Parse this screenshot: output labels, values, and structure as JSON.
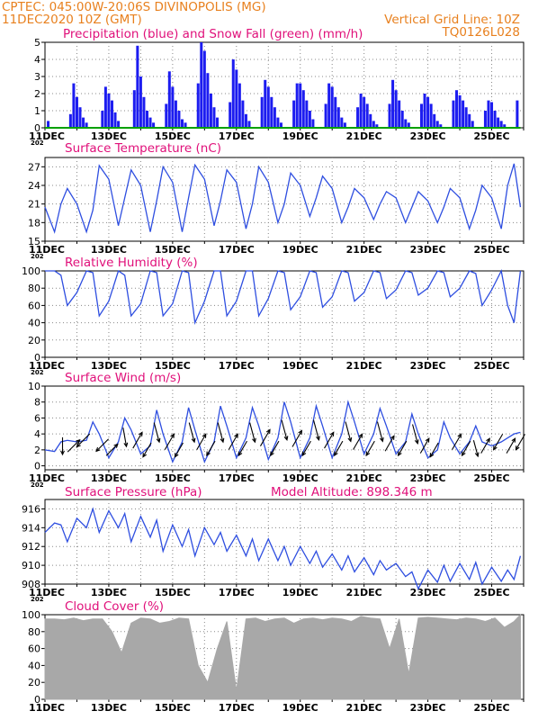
{
  "header": {
    "line1": "CPTEC:   045:00W-20:06S   DIVINOPOLIS (MG)",
    "line2": "11DEC2020 10Z (GMT)",
    "grid_note": "Vertical Grid Line: 10Z",
    "code": "TQ0126L028"
  },
  "colors": {
    "header": "#e8801e",
    "title": "#e0107a",
    "precip": "#1c1cf0",
    "snow": "#00a000",
    "line": "#2e4ee0",
    "cloud": "#a8a8a8",
    "arrow": "#000000"
  },
  "x_axis": {
    "labels": [
      "11DEC",
      "13DEC",
      "15DEC",
      "17DEC",
      "19DEC",
      "21DEC",
      "23DEC",
      "25DEC"
    ],
    "year_stub": "202"
  },
  "chart_data": [
    {
      "id": "precip",
      "type": "bar",
      "title": "Precipitation (blue) and Snow Fall (green) (mm/h)",
      "ylim": [
        0,
        5
      ],
      "yticks": [
        "0",
        "1",
        "2",
        "3",
        "4",
        "5"
      ],
      "series": [
        {
          "name": "Precipitation",
          "color": "#1c1cf0",
          "x": [
            0.1,
            0.8,
            0.9,
            1.0,
            1.1,
            1.2,
            1.3,
            1.8,
            1.9,
            2.0,
            2.1,
            2.2,
            2.3,
            2.8,
            2.9,
            3.0,
            3.1,
            3.2,
            3.3,
            3.4,
            3.8,
            3.9,
            4.0,
            4.1,
            4.2,
            4.3,
            4.4,
            4.8,
            4.9,
            5.0,
            5.1,
            5.2,
            5.3,
            5.4,
            5.8,
            5.9,
            6.0,
            6.1,
            6.2,
            6.3,
            6.4,
            6.8,
            6.9,
            7.0,
            7.1,
            7.2,
            7.3,
            7.4,
            7.8,
            7.9,
            8.0,
            8.1,
            8.2,
            8.3,
            8.4,
            8.8,
            8.9,
            9.0,
            9.1,
            9.2,
            9.3,
            9.4,
            9.8,
            9.9,
            10.0,
            10.1,
            10.2,
            10.3,
            10.4,
            10.8,
            10.9,
            11.0,
            11.1,
            11.2,
            11.3,
            11.4,
            11.8,
            11.9,
            12.0,
            12.1,
            12.2,
            12.3,
            12.4,
            12.8,
            12.9,
            13.0,
            13.1,
            13.2,
            13.3,
            13.4,
            13.8,
            13.9,
            14.0,
            14.1,
            14.2,
            14.3,
            14.4,
            14.8
          ],
          "values": [
            0.4,
            0.8,
            2.6,
            1.8,
            1.2,
            0.6,
            0.3,
            1.0,
            2.4,
            2.0,
            1.6,
            0.9,
            0.4,
            2.2,
            4.8,
            3.0,
            1.8,
            1.0,
            0.6,
            0.3,
            1.4,
            3.3,
            2.4,
            1.6,
            1.0,
            0.5,
            0.3,
            2.6,
            5.0,
            4.5,
            3.2,
            2.0,
            1.2,
            0.6,
            1.5,
            4.0,
            3.4,
            2.6,
            1.6,
            0.8,
            0.4,
            1.8,
            2.8,
            2.4,
            1.8,
            1.2,
            0.6,
            0.3,
            1.6,
            2.6,
            2.6,
            2.2,
            1.6,
            1.0,
            0.5,
            1.4,
            2.6,
            2.4,
            1.8,
            1.2,
            0.6,
            0.3,
            1.2,
            2.0,
            1.8,
            1.4,
            0.8,
            0.4,
            0.2,
            1.4,
            2.8,
            2.2,
            1.6,
            1.0,
            0.5,
            0.3,
            1.4,
            2.0,
            1.8,
            1.4,
            0.8,
            0.4,
            0.2,
            1.6,
            2.2,
            1.9,
            1.6,
            1.2,
            0.8,
            0.4,
            1.0,
            1.6,
            1.5,
            1.0,
            0.6,
            0.4,
            0.2,
            1.6
          ]
        },
        {
          "name": "Snow Fall",
          "color": "#00a000",
          "x": [
            0,
            14.9
          ],
          "values": [
            0,
            0
          ]
        }
      ]
    },
    {
      "id": "temperature",
      "type": "line",
      "title": "Surface Temperature (nC)",
      "ylim": [
        15,
        28.5
      ],
      "yticks": [
        "15",
        "18",
        "21",
        "24",
        "27"
      ],
      "x": [
        0,
        0.3,
        0.5,
        0.7,
        1.0,
        1.3,
        1.5,
        1.7,
        2.0,
        2.3,
        2.5,
        2.7,
        3.0,
        3.3,
        3.5,
        3.7,
        4.0,
        4.3,
        4.5,
        4.7,
        5.0,
        5.3,
        5.5,
        5.7,
        6.0,
        6.3,
        6.5,
        6.7,
        7.0,
        7.3,
        7.5,
        7.7,
        8.0,
        8.3,
        8.5,
        8.7,
        9.0,
        9.3,
        9.5,
        9.7,
        10.0,
        10.3,
        10.5,
        10.7,
        11.0,
        11.3,
        11.5,
        11.7,
        12.0,
        12.3,
        12.5,
        12.7,
        13.0,
        13.3,
        13.5,
        13.7,
        14.0,
        14.3,
        14.5,
        14.7,
        14.9
      ],
      "series": [
        {
          "name": "",
          "values": [
            20.5,
            16.5,
            21.0,
            23.5,
            21.0,
            16.5,
            20.0,
            27.2,
            25.0,
            17.5,
            22.0,
            26.5,
            24.0,
            16.5,
            21.5,
            27.0,
            24.5,
            16.5,
            22.0,
            27.3,
            25.0,
            17.5,
            21.5,
            26.5,
            24.5,
            17.0,
            21.0,
            27.0,
            24.5,
            18.0,
            21.0,
            26.0,
            24.0,
            19.0,
            22.0,
            25.5,
            23.5,
            18.0,
            20.5,
            23.5,
            22.0,
            18.5,
            21.0,
            23.0,
            22.0,
            18.0,
            20.5,
            23.0,
            21.5,
            18.0,
            20.5,
            23.5,
            22.0,
            17.0,
            20.0,
            24.0,
            22.0,
            17.0,
            24.0,
            27.5,
            20.5
          ]
        }
      ]
    },
    {
      "id": "humidity",
      "type": "line",
      "title": "Relative Humidity (%)",
      "ylim": [
        0,
        100
      ],
      "yticks": [
        "0",
        "20",
        "40",
        "60",
        "80",
        "100"
      ],
      "x": [
        0,
        0.3,
        0.5,
        0.7,
        1.0,
        1.3,
        1.5,
        1.7,
        2.0,
        2.3,
        2.5,
        2.7,
        3.0,
        3.3,
        3.5,
        3.7,
        4.0,
        4.3,
        4.5,
        4.7,
        5.0,
        5.3,
        5.5,
        5.7,
        6.0,
        6.3,
        6.5,
        6.7,
        7.0,
        7.3,
        7.5,
        7.7,
        8.0,
        8.3,
        8.5,
        8.7,
        9.0,
        9.3,
        9.5,
        9.7,
        10.0,
        10.3,
        10.5,
        10.7,
        11.0,
        11.3,
        11.5,
        11.7,
        12.0,
        12.3,
        12.5,
        12.7,
        13.0,
        13.3,
        13.5,
        13.7,
        14.0,
        14.3,
        14.5,
        14.7,
        14.9
      ],
      "series": [
        {
          "name": "",
          "values": [
            100,
            100,
            95,
            60,
            75,
            100,
            98,
            48,
            65,
            100,
            95,
            48,
            62,
            100,
            98,
            48,
            62,
            100,
            98,
            40,
            65,
            100,
            100,
            48,
            65,
            100,
            100,
            48,
            68,
            100,
            98,
            55,
            70,
            100,
            98,
            58,
            70,
            100,
            98,
            65,
            75,
            100,
            98,
            68,
            78,
            100,
            98,
            72,
            80,
            100,
            98,
            70,
            80,
            100,
            97,
            60,
            78,
            100,
            60,
            40,
            100
          ]
        }
      ]
    },
    {
      "id": "wind",
      "type": "line",
      "title": "Surface Wind (m/s)",
      "ylim": [
        -0.5,
        10
      ],
      "yticks": [
        "0",
        "2",
        "4",
        "6",
        "8",
        "10"
      ],
      "x": [
        0,
        0.3,
        0.5,
        0.7,
        1.0,
        1.3,
        1.5,
        1.7,
        2.0,
        2.3,
        2.5,
        2.7,
        3.0,
        3.3,
        3.5,
        3.7,
        4.0,
        4.3,
        4.5,
        4.7,
        5.0,
        5.3,
        5.5,
        5.7,
        6.0,
        6.3,
        6.5,
        6.7,
        7.0,
        7.3,
        7.5,
        7.7,
        8.0,
        8.3,
        8.5,
        8.7,
        9.0,
        9.3,
        9.5,
        9.7,
        10.0,
        10.3,
        10.5,
        10.7,
        11.0,
        11.3,
        11.5,
        11.7,
        12.0,
        12.3,
        12.5,
        12.7,
        13.0,
        13.3,
        13.5,
        13.7,
        14.0,
        14.3,
        14.5,
        14.7,
        14.9
      ],
      "series": [
        {
          "name": "",
          "values": [
            2.0,
            1.8,
            3.0,
            3.2,
            3.0,
            3.2,
            5.5,
            4.0,
            1.0,
            3.0,
            6.0,
            4.5,
            1.5,
            2.5,
            7.0,
            4.0,
            0.5,
            3.0,
            7.3,
            4.5,
            0.5,
            3.0,
            7.5,
            5.0,
            1.0,
            3.5,
            7.3,
            5.0,
            0.8,
            3.5,
            8.0,
            5.5,
            1.0,
            3.5,
            7.5,
            5.0,
            1.0,
            4.0,
            8.0,
            5.5,
            1.5,
            4.0,
            7.2,
            5.0,
            1.5,
            3.0,
            6.5,
            4.0,
            1.0,
            2.0,
            5.5,
            3.5,
            1.5,
            3.0,
            5.0,
            3.0,
            2.5,
            3.0,
            3.5,
            4.0,
            4.2
          ]
        }
      ],
      "arrows": {
        "x": [
          0.55,
          0.9,
          1.2,
          1.8,
          2.1,
          2.5,
          2.9,
          3.2,
          3.5,
          3.9,
          4.2,
          4.6,
          4.9,
          5.2,
          5.5,
          5.9,
          6.2,
          6.5,
          6.9,
          7.2,
          7.5,
          7.9,
          8.2,
          8.5,
          8.9,
          9.2,
          9.5,
          9.8,
          10.2,
          10.5,
          10.8,
          11.2,
          11.6,
          11.9,
          12.2,
          12.9,
          13.2,
          13.5,
          13.8,
          14.2,
          14.6,
          14.9
        ],
        "speed": [
          2.5,
          2.5,
          3.2,
          2.6,
          2.0,
          3.6,
          3.2,
          2.0,
          4.2,
          3.0,
          2.0,
          4.2,
          3.0,
          2.2,
          4.2,
          3.0,
          2.2,
          4.2,
          3.5,
          2.2,
          4.5,
          3.4,
          2.2,
          4.5,
          3.2,
          2.2,
          4.3,
          3.0,
          2.2,
          4.3,
          2.8,
          2.2,
          4.0,
          2.5,
          2.0,
          3.0,
          2.2,
          2.2,
          2.5,
          3.0,
          2.5,
          3.0
        ],
        "dir": [
          0,
          135,
          315,
          315,
          135,
          10,
          150,
          330,
          15,
          150,
          330,
          15,
          150,
          330,
          15,
          150,
          330,
          15,
          150,
          330,
          15,
          150,
          330,
          15,
          150,
          330,
          15,
          150,
          330,
          15,
          150,
          330,
          15,
          150,
          330,
          150,
          330,
          15,
          150,
          330,
          150,
          330
        ]
      }
    },
    {
      "id": "pressure",
      "type": "line",
      "title": "Surface Pressure (hPa)",
      "subtitle": "Model Altitude: 898.346 m",
      "ylim": [
        908,
        917
      ],
      "yticks": [
        "908",
        "910",
        "912",
        "914",
        "916"
      ],
      "x": [
        0,
        0.3,
        0.5,
        0.7,
        1.0,
        1.3,
        1.5,
        1.7,
        2.0,
        2.3,
        2.5,
        2.7,
        3.0,
        3.3,
        3.5,
        3.7,
        4.0,
        4.3,
        4.5,
        4.7,
        5.0,
        5.3,
        5.5,
        5.7,
        6.0,
        6.3,
        6.5,
        6.7,
        7.0,
        7.3,
        7.5,
        7.7,
        8.0,
        8.3,
        8.5,
        8.7,
        9.0,
        9.3,
        9.5,
        9.7,
        10.0,
        10.3,
        10.5,
        10.7,
        11.0,
        11.3,
        11.5,
        11.7,
        12.0,
        12.3,
        12.5,
        12.7,
        13.0,
        13.3,
        13.5,
        13.7,
        14.0,
        14.3,
        14.5,
        14.7,
        14.9
      ],
      "series": [
        {
          "name": "",
          "values": [
            913.5,
            914.5,
            914.3,
            912.5,
            915.0,
            914.0,
            916.0,
            913.5,
            915.8,
            914.0,
            915.5,
            912.5,
            915.2,
            913.0,
            914.8,
            911.5,
            914.3,
            912.0,
            913.8,
            911.0,
            914.0,
            912.2,
            913.5,
            911.5,
            913.2,
            911.0,
            912.8,
            910.5,
            912.8,
            910.5,
            912.0,
            910.0,
            912.0,
            910.2,
            911.5,
            909.8,
            911.2,
            909.5,
            911.0,
            909.3,
            910.8,
            909.0,
            910.5,
            909.5,
            910.2,
            908.8,
            909.3,
            907.5,
            909.5,
            908.2,
            910.0,
            908.3,
            910.2,
            908.5,
            910.3,
            908.0,
            909.8,
            908.3,
            909.5,
            908.5,
            911.0
          ]
        }
      ]
    },
    {
      "id": "cloud",
      "type": "area",
      "title": "Cloud Cover (%)",
      "ylim": [
        0,
        100
      ],
      "yticks": [
        "0",
        "20",
        "40",
        "60",
        "80",
        "100"
      ],
      "x": [
        0,
        0.3,
        0.6,
        0.9,
        1.2,
        1.5,
        1.8,
        2.1,
        2.4,
        2.7,
        3.0,
        3.3,
        3.6,
        3.9,
        4.2,
        4.5,
        4.8,
        5.1,
        5.4,
        5.7,
        6.0,
        6.3,
        6.6,
        6.9,
        7.2,
        7.5,
        7.8,
        8.1,
        8.4,
        8.7,
        9.0,
        9.3,
        9.6,
        9.9,
        10.2,
        10.5,
        10.8,
        11.1,
        11.4,
        11.7,
        12.0,
        12.3,
        12.6,
        12.9,
        13.2,
        13.5,
        13.8,
        14.1,
        14.4,
        14.7,
        14.9
      ],
      "series": [
        {
          "name": "",
          "values": [
            95,
            95,
            94,
            96,
            93,
            95,
            95,
            80,
            55,
            90,
            96,
            95,
            90,
            92,
            96,
            95,
            40,
            20,
            60,
            92,
            10,
            95,
            96,
            92,
            95,
            96,
            90,
            95,
            96,
            94,
            96,
            95,
            92,
            98,
            96,
            95,
            60,
            95,
            30,
            96,
            97,
            96,
            95,
            94,
            96,
            95,
            92,
            96,
            85,
            92,
            100
          ]
        }
      ]
    }
  ]
}
